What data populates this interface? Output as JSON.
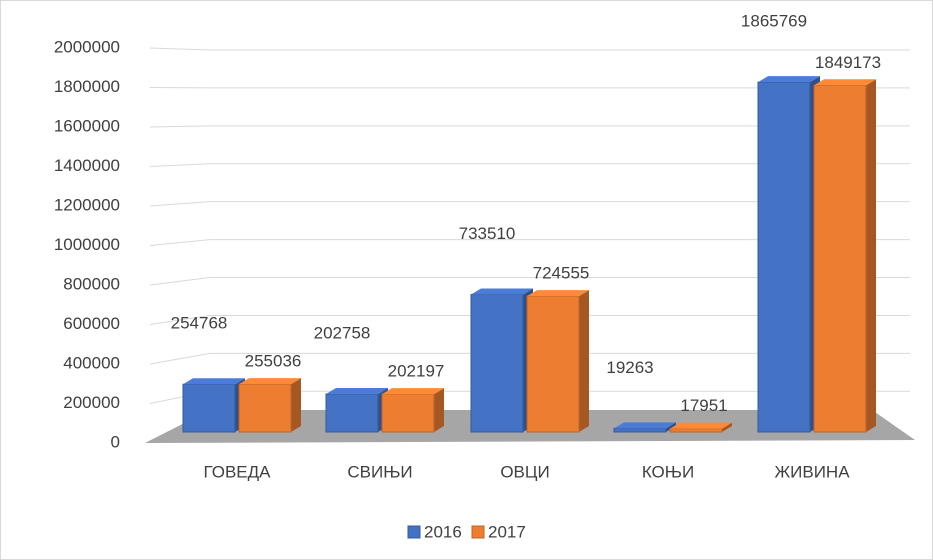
{
  "chart_data": {
    "type": "bar3d",
    "categories": [
      "ГОВЕДА",
      "СВИЊИ",
      "ОВЦИ",
      "КОЊИ",
      "ЖИВИНА"
    ],
    "series": [
      {
        "name": "2016",
        "color": "#4472c4",
        "values": [
          254768,
          202758,
          733510,
          19263,
          1865769
        ]
      },
      {
        "name": "2017",
        "color": "#ed7d31",
        "values": [
          255036,
          202197,
          724555,
          17951,
          1849173
        ]
      }
    ],
    "ylim": [
      0,
      2000000
    ],
    "yticks": [
      0,
      200000,
      400000,
      600000,
      800000,
      1000000,
      1200000,
      1400000,
      1600000,
      1800000,
      2000000
    ],
    "grid": true,
    "legend": "bottom"
  }
}
